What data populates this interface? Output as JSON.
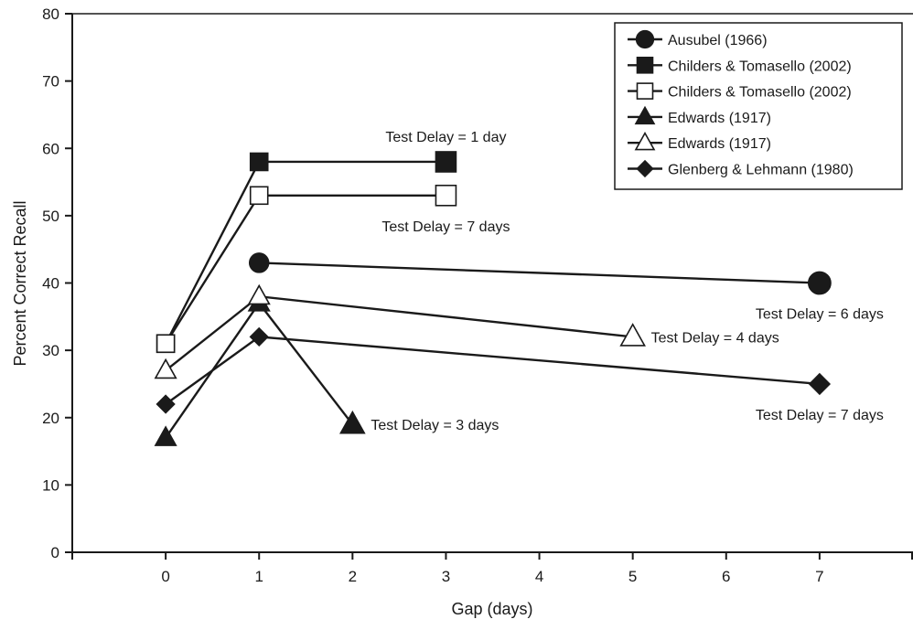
{
  "chart_data": {
    "type": "line",
    "title": "",
    "xlabel": "Gap (days)",
    "ylabel": "Percent Correct Recall",
    "xlim": [
      -1,
      8
    ],
    "ylim": [
      0,
      80
    ],
    "x_ticks": [
      0,
      1,
      2,
      3,
      4,
      5,
      6,
      7
    ],
    "y_ticks": [
      0,
      10,
      20,
      30,
      40,
      50,
      60,
      70,
      80
    ],
    "grid": false,
    "legend_position": "top-right",
    "series": [
      {
        "name": "Ausubel (1966)",
        "marker": "circle",
        "fill": "filled",
        "points": [
          [
            1,
            43
          ],
          [
            7,
            40
          ]
        ]
      },
      {
        "name": "Childers & Tomasello (2002)",
        "marker": "square",
        "fill": "filled",
        "points": [
          [
            0,
            31
          ],
          [
            1,
            58
          ],
          [
            3,
            58
          ]
        ]
      },
      {
        "name": "Childers & Tomasello (2002)",
        "marker": "square",
        "fill": "open",
        "points": [
          [
            0,
            31
          ],
          [
            1,
            53
          ],
          [
            3,
            53
          ]
        ]
      },
      {
        "name": "Edwards (1917)",
        "marker": "triangle",
        "fill": "filled",
        "points": [
          [
            0,
            17
          ],
          [
            1,
            37
          ],
          [
            2,
            19
          ]
        ]
      },
      {
        "name": "Edwards (1917)",
        "marker": "triangle",
        "fill": "open",
        "points": [
          [
            0,
            27
          ],
          [
            1,
            38
          ],
          [
            5,
            32
          ]
        ]
      },
      {
        "name": "Glenberg & Lehmann (1980)",
        "marker": "diamond",
        "fill": "filled",
        "points": [
          [
            0,
            22
          ],
          [
            1,
            32
          ],
          [
            7,
            25
          ]
        ]
      }
    ],
    "annotations": [
      {
        "text": "Test Delay = 1 day",
        "x": 3,
        "y": 58,
        "placement": "above"
      },
      {
        "text": "Test Delay = 7 days",
        "x": 3,
        "y": 53,
        "placement": "below"
      },
      {
        "text": "Test Delay = 6 days",
        "x": 7,
        "y": 40,
        "placement": "below"
      },
      {
        "text": "Test Delay = 4 days",
        "x": 5,
        "y": 32,
        "placement": "right"
      },
      {
        "text": "Test Delay = 7 days",
        "x": 7,
        "y": 25,
        "placement": "below"
      },
      {
        "text": "Test Delay = 3 days",
        "x": 2,
        "y": 19,
        "placement": "right"
      }
    ],
    "colors": {
      "line": "#1a1a1a",
      "open_fill": "#ffffff",
      "axis": "#1a1a1a"
    }
  }
}
